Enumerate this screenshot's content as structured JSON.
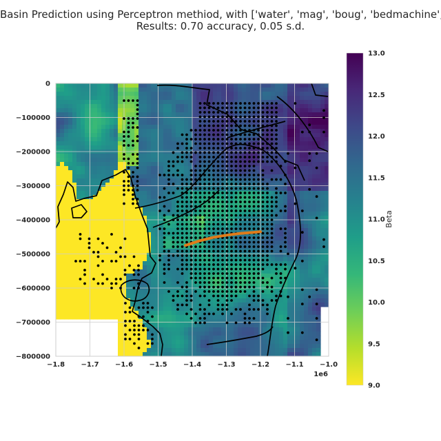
{
  "chart_data": {
    "type": "heatmap",
    "title_line1": "Basin Prediction using Perceptron methiod, with ['water', 'mag', 'boug', 'bedmachine', 'rough",
    "title_line2": "Results: 0.70 accuracy, 0.05 s.d.",
    "x_ticks": [
      {
        "value": -1800000,
        "label": "−1.8"
      },
      {
        "value": -1700000,
        "label": "−1.7"
      },
      {
        "value": -1600000,
        "label": "−1.6"
      },
      {
        "value": -1500000,
        "label": "−1.5"
      },
      {
        "value": -1400000,
        "label": "−1.4"
      },
      {
        "value": -1300000,
        "label": "−1.3"
      },
      {
        "value": -1200000,
        "label": "−1.2"
      },
      {
        "value": -1100000,
        "label": "−1.1"
      },
      {
        "value": -1000000,
        "label": "−1.0"
      }
    ],
    "x_offset_label": "1e6",
    "xlim": [
      -1800000,
      -1000000
    ],
    "y_ticks": [
      {
        "value": 0,
        "label": "0"
      },
      {
        "value": -100000,
        "label": "−100000"
      },
      {
        "value": -200000,
        "label": "−200000"
      },
      {
        "value": -300000,
        "label": "−300000"
      },
      {
        "value": -400000,
        "label": "−400000"
      },
      {
        "value": -500000,
        "label": "−500000"
      },
      {
        "value": -600000,
        "label": "−600000"
      },
      {
        "value": -700000,
        "label": "−700000"
      },
      {
        "value": -800000,
        "label": "−800000"
      }
    ],
    "ylim": [
      -800000,
      0
    ],
    "grid": true,
    "colorbar": {
      "label": "Beta",
      "range": [
        9.0,
        13.0
      ],
      "ticks": [
        "9.0",
        "9.5",
        "10.0",
        "10.5",
        "11.0",
        "11.5",
        "12.0",
        "12.5",
        "13.0"
      ],
      "colormap": "viridis_r",
      "stops": [
        "#fde725",
        "#b5de2b",
        "#6ece58",
        "#35b779",
        "#1f9e89",
        "#26828e",
        "#31688e",
        "#3e4989",
        "#482878",
        "#440154"
      ]
    },
    "transect_line": {
      "color": "#e07b1a",
      "x": [
        -1420000,
        -1380000,
        -1340000,
        -1300000,
        -1260000,
        -1220000,
        -1200000
      ],
      "y": [
        -475000,
        -462000,
        -452000,
        -445000,
        -440000,
        -437000,
        -435000
      ]
    },
    "outline_color": "#000000",
    "point_color": "#000000"
  }
}
